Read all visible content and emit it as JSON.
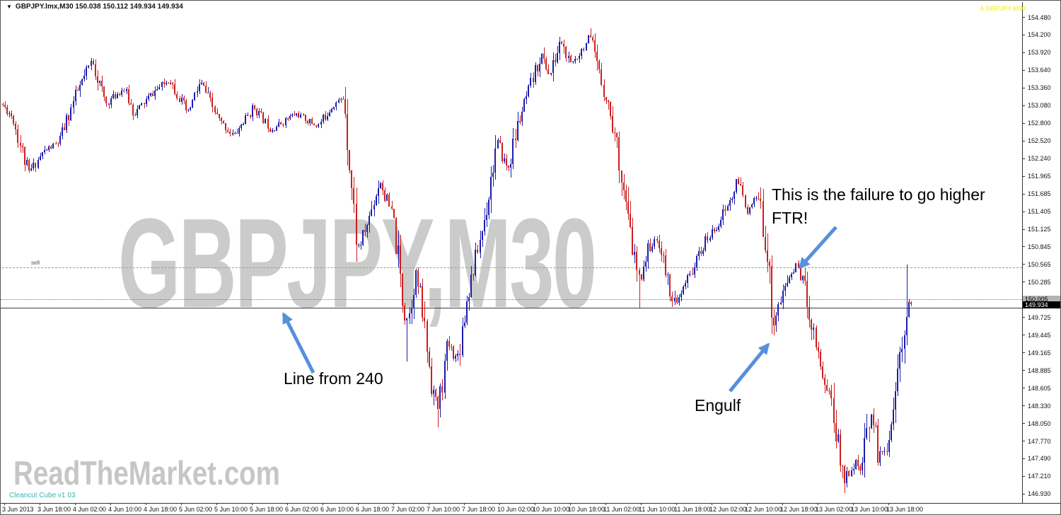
{
  "window": {
    "collapse_icon": "▼",
    "title": "GBPJPY.lmx,M30  150.038 150.112 149.934 149.934",
    "top_right_indicator": "A GBPJPY M30"
  },
  "watermarks": {
    "symbol": "GBPJPY,M30",
    "site": "ReadTheMarket.com",
    "indicator": "Cleancut Cube v1 03"
  },
  "annotations": {
    "ftr": "This is the failure to go higher\nFTR!",
    "engulf": "Engulf",
    "line240": "Line from 240",
    "sell": "sell"
  },
  "price_labels": {
    "line_level": "150.005",
    "current": "149.934"
  },
  "colors": {
    "bull": "#1c1cae",
    "bear": "#cc1f1f",
    "arrow": "#5590dd",
    "sell_line": "#79b579",
    "watermark": "#cbcbcb",
    "indicator_yellow": "#f4f44a"
  },
  "chart_data": {
    "type": "candlestick",
    "symbol": "GBPJPY.lmx",
    "timeframe": "M30",
    "open": 150.038,
    "high": 150.112,
    "low": 149.934,
    "close": 149.934,
    "ylim": [
      146.93,
      154.48
    ],
    "grid": false,
    "y_ticks": [
      "154.480",
      "154.200",
      "153.920",
      "153.640",
      "153.360",
      "153.080",
      "152.800",
      "152.520",
      "152.240",
      "151.965",
      "151.685",
      "151.405",
      "151.125",
      "150.845",
      "150.565",
      "150.285",
      "150.005",
      "149.725",
      "149.445",
      "149.165",
      "148.885",
      "148.605",
      "148.330",
      "148.050",
      "147.770",
      "147.490",
      "147.210",
      "146.930"
    ],
    "x_ticks": [
      "3 Jun 2013",
      "3 Jun 18:00",
      "4 Jun 02:00",
      "4 Jun 10:00",
      "4 Jun 18:00",
      "5 Jun 02:00",
      "5 Jun 10:00",
      "5 Jun 18:00",
      "6 Jun 02:00",
      "6 Jun 10:00",
      "6 Jun 18:00",
      "7 Jun 02:00",
      "7 Jun 10:00",
      "7 Jun 18:00",
      "10 Jun 02:00",
      "10 Jun 10:00",
      "10 Jun 18:00",
      "11 Jun 02:00",
      "11 Jun 10:00",
      "11 Jun 18:00",
      "12 Jun 02:00",
      "12 Jun 10:00",
      "12 Jun 18:00",
      "13 Jun 02:00",
      "13 Jun 10:00",
      "13 Jun 18:00"
    ],
    "levels": {
      "sell_dashdot_green": 150.52,
      "dotted_gray": 150.005,
      "solid_black_line_from_240": 149.875,
      "current_price": 149.934
    },
    "bar_count": 412,
    "price_path": [
      [
        0,
        153.1
      ],
      [
        5,
        152.9
      ],
      [
        12,
        152.0
      ],
      [
        19,
        152.35
      ],
      [
        26,
        152.5
      ],
      [
        33,
        153.2
      ],
      [
        41,
        153.8
      ],
      [
        47,
        153.1
      ],
      [
        55,
        153.35
      ],
      [
        60,
        152.95
      ],
      [
        69,
        153.3
      ],
      [
        76,
        153.5
      ],
      [
        84,
        152.95
      ],
      [
        90,
        153.45
      ],
      [
        98,
        152.85
      ],
      [
        105,
        152.6
      ],
      [
        114,
        153.05
      ],
      [
        122,
        152.7
      ],
      [
        133,
        152.95
      ],
      [
        143,
        152.75
      ],
      [
        150,
        153.1
      ],
      [
        155,
        153.2
      ],
      [
        158,
        151.9
      ],
      [
        161,
        150.8
      ],
      [
        165,
        151.15
      ],
      [
        171,
        151.9
      ],
      [
        177,
        151.3
      ],
      [
        182,
        149.85
      ],
      [
        184,
        149.7
      ],
      [
        187,
        150.5
      ],
      [
        190,
        149.9
      ],
      [
        194,
        148.8
      ],
      [
        197,
        148.2
      ],
      [
        202,
        149.3
      ],
      [
        206,
        149.05
      ],
      [
        211,
        150.15
      ],
      [
        218,
        151.2
      ],
      [
        224,
        152.5
      ],
      [
        229,
        152.05
      ],
      [
        234,
        152.85
      ],
      [
        239,
        153.35
      ],
      [
        244,
        153.9
      ],
      [
        248,
        153.55
      ],
      [
        253,
        154.1
      ],
      [
        257,
        153.7
      ],
      [
        262,
        153.95
      ],
      [
        266,
        154.15
      ],
      [
        270,
        153.6
      ],
      [
        274,
        153.15
      ],
      [
        279,
        152.35
      ],
      [
        283,
        151.3
      ],
      [
        288,
        150.3
      ],
      [
        293,
        150.85
      ],
      [
        297,
        150.95
      ],
      [
        302,
        150.2
      ],
      [
        305,
        149.9
      ],
      [
        312,
        150.45
      ],
      [
        318,
        150.9
      ],
      [
        323,
        151.15
      ],
      [
        330,
        151.6
      ],
      [
        333,
        151.88
      ],
      [
        338,
        151.4
      ],
      [
        342,
        151.65
      ],
      [
        346,
        150.85
      ],
      [
        349,
        149.65
      ],
      [
        352,
        149.95
      ],
      [
        356,
        150.35
      ],
      [
        360,
        150.55
      ],
      [
        363,
        150.25
      ],
      [
        366,
        149.7
      ],
      [
        369,
        149.25
      ],
      [
        372,
        148.7
      ],
      [
        375,
        148.5
      ],
      [
        378,
        147.75
      ],
      [
        381,
        147.15
      ],
      [
        386,
        147.45
      ],
      [
        389,
        147.25
      ],
      [
        393,
        148.3
      ],
      [
        397,
        147.5
      ],
      [
        400,
        147.65
      ],
      [
        404,
        148.45
      ],
      [
        407,
        149.2
      ],
      [
        409,
        149.9
      ],
      [
        411,
        149.93
      ]
    ],
    "spikes_low": [
      [
        183,
        149.02
      ],
      [
        197,
        147.98
      ],
      [
        288,
        149.88
      ],
      [
        381,
        146.94
      ]
    ],
    "spikes_high": [
      [
        266,
        154.3
      ],
      [
        409,
        150.56
      ]
    ],
    "last_close": 149.934
  }
}
